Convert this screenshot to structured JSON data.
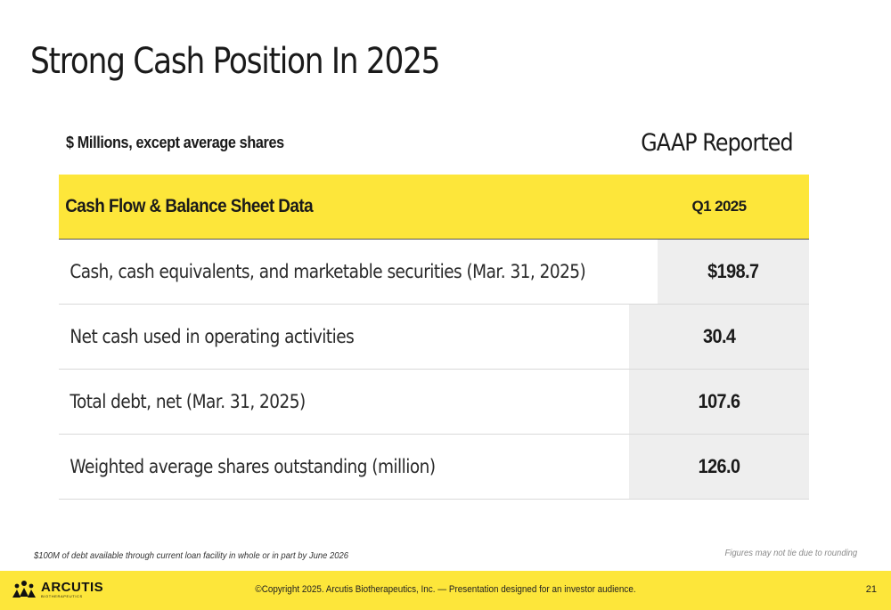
{
  "slide": {
    "title": "Strong Cash Position In 2025",
    "units_label": "$ Millions, except average shares",
    "column_group": "GAAP Reported"
  },
  "table": {
    "header": {
      "label": "Cash Flow & Balance Sheet Data",
      "period": "Q1 2025"
    },
    "rows": [
      {
        "label": "Cash, cash equivalents, and marketable securities  (Mar. 31, 2025)",
        "value": "$198.7"
      },
      {
        "label": "Net cash used in operating activities",
        "value": "30.4"
      },
      {
        "label": "Total debt, net (Mar. 31, 2025)",
        "value": "107.6"
      },
      {
        "label": "Weighted average shares outstanding (million)",
        "value": "126.0"
      }
    ]
  },
  "footnotes": {
    "left": "$100M of debt available through current loan facility in whole or in part by June 2026",
    "right": "Figures may not tie due to rounding"
  },
  "footer": {
    "logo_name": "ARCUTIS",
    "logo_sub": "BIOTHERAPEUTICS",
    "copyright": "©Copyright 2025. Arcutis Biotherapeutics, Inc.  —  Presentation designed for an investor audience.",
    "page_number": "21"
  },
  "colors": {
    "accent_yellow": "#fde63a",
    "value_cell_bg": "#eeeeee",
    "text": "#1a1a1a"
  }
}
